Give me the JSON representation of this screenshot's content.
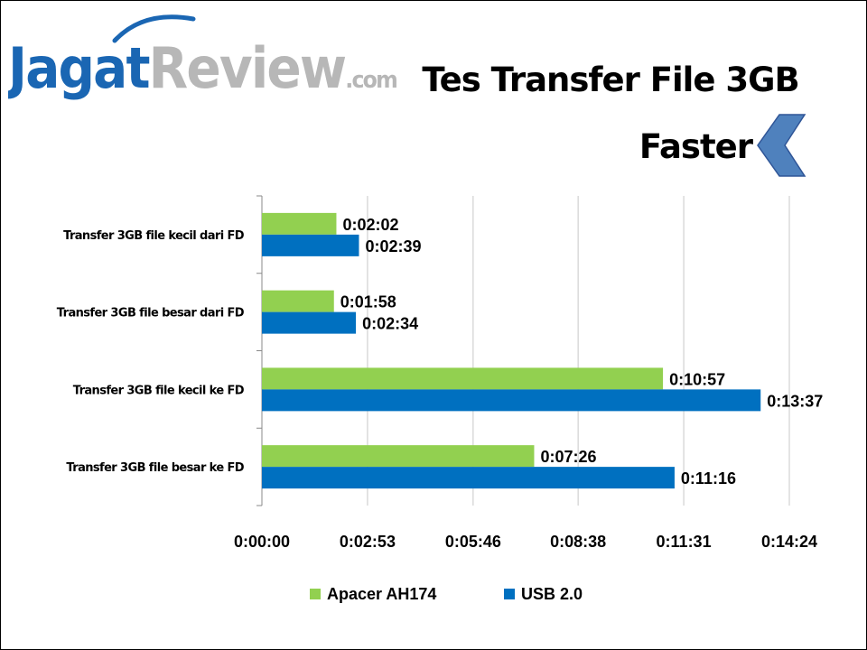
{
  "brand": {
    "logo_text_primary": "Jagat",
    "logo_text_secondary": "Review",
    "logo_suffix": ".com"
  },
  "header": {
    "title": "Tes Transfer File 3GB",
    "faster_label": "Faster",
    "faster_icon": "chevron-left-icon"
  },
  "colors": {
    "apacer": "#92d050",
    "usb": "#0070c0",
    "arrow": "#4f81bd",
    "grid": "#c8c8c8",
    "axis": "#888888",
    "logo_blue": "#1a66b3",
    "logo_gray": "#b7b7b7"
  },
  "chart_data": {
    "type": "bar",
    "orientation": "horizontal",
    "title": "Tes Transfer File 3GB",
    "unit": "h:mm:ss",
    "categories": [
      "Transfer 3GB file kecil dari FD",
      "Transfer 3GB file besar dari FD",
      "Transfer 3GB file kecil ke FD",
      "Transfer 3GB file besar ke FD"
    ],
    "series": [
      {
        "name": "Apacer AH174",
        "color": "#92d050",
        "values_seconds": [
          122,
          118,
          657,
          446
        ],
        "labels": [
          "0:02:02",
          "0:01:58",
          "0:10:57",
          "0:07:26"
        ]
      },
      {
        "name": "USB 2.0",
        "color": "#0070c0",
        "values_seconds": [
          159,
          154,
          817,
          676
        ],
        "labels": [
          "0:02:39",
          "0:02:34",
          "0:13:37",
          "0:11:16"
        ]
      }
    ],
    "x_axis": {
      "min_seconds": 0,
      "max_seconds": 864,
      "tick_seconds": [
        0,
        173,
        346,
        518,
        691,
        864
      ],
      "tick_labels": [
        "0:00:00",
        "0:02:53",
        "0:05:46",
        "0:08:38",
        "0:11:31",
        "0:14:24"
      ]
    },
    "grid": true,
    "legend_position": "bottom"
  }
}
